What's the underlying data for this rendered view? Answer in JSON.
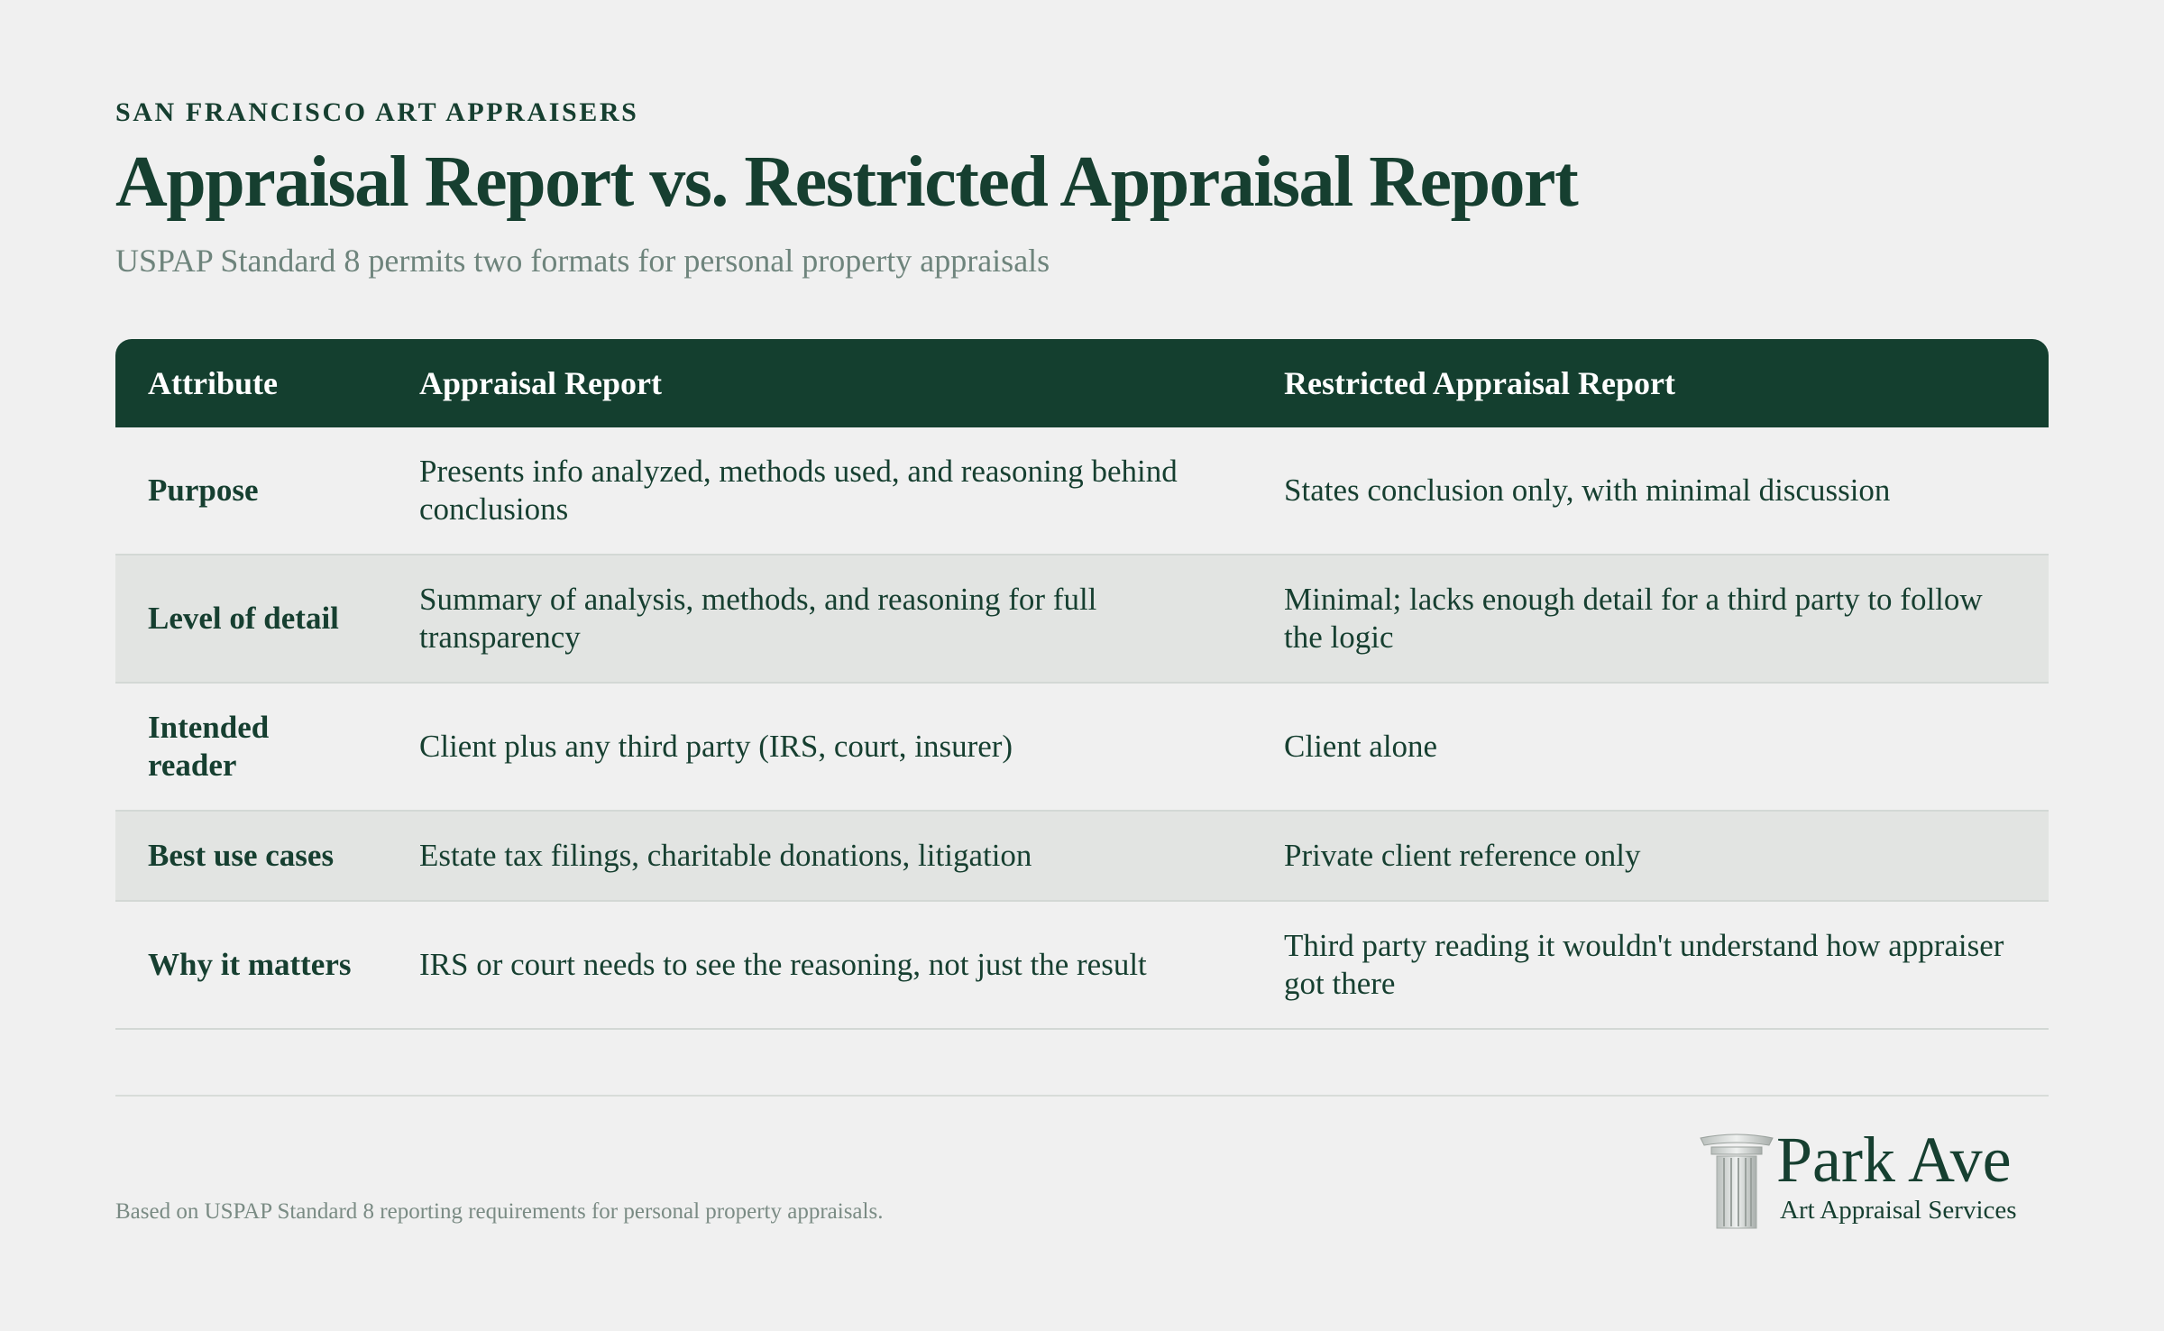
{
  "header": {
    "kicker": "SAN FRANCISCO ART APPRAISERS",
    "title": "Appraisal Report vs. Restricted Appraisal Report",
    "subtitle": "USPAP Standard 8 permits two formats for personal property appraisals"
  },
  "table": {
    "columns": [
      "Attribute",
      "Appraisal Report",
      "Restricted Appraisal Report"
    ],
    "rows": [
      {
        "attribute": "Purpose",
        "appraisal": "Presents info analyzed, methods used, and reasoning behind conclusions",
        "restricted": "States conclusion only, with minimal discussion"
      },
      {
        "attribute": "Level of detail",
        "appraisal": "Summary of analysis, methods, and reasoning for full transparency",
        "restricted": "Minimal; lacks enough detail for a third party to follow the logic"
      },
      {
        "attribute": "Intended reader",
        "appraisal": "Client plus any third party (IRS, court, insurer)",
        "restricted": "Client alone"
      },
      {
        "attribute": "Best use cases",
        "appraisal": "Estate tax filings, charitable donations, litigation",
        "restricted": "Private client reference only"
      },
      {
        "attribute": "Why it matters",
        "appraisal": "IRS or court needs to see the reasoning, not just the result",
        "restricted": "Third party reading it wouldn't understand how appraiser got there"
      }
    ]
  },
  "footer": {
    "note": "Based on USPAP Standard 8 reporting requirements for personal property appraisals.",
    "logo": {
      "name": "Park Ave",
      "tagline": "Art Appraisal Services",
      "icon": "column-icon"
    }
  },
  "colors": {
    "primary": "#163f30",
    "header_bg": "#143f2f",
    "background": "#f0f0f0",
    "row_alt": "#e2e4e2",
    "muted": "#6e847c"
  }
}
